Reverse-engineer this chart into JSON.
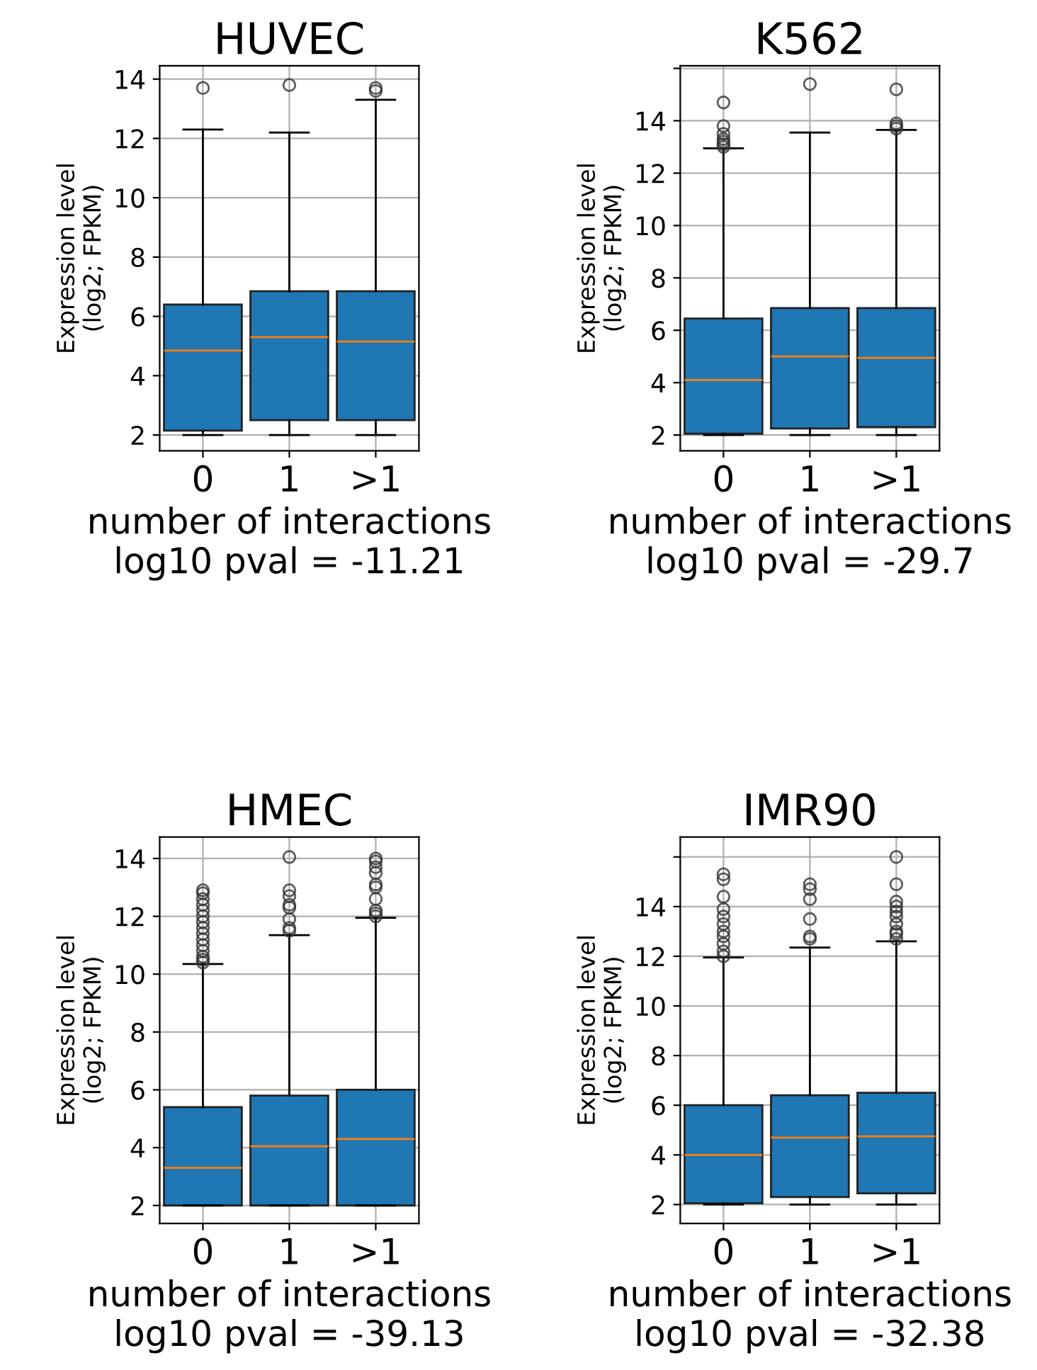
{
  "chart_data": [
    {
      "type": "box",
      "title": "HUVEC",
      "xlabel": "number of interactions\nlog10 pval = -11.21",
      "ylabel": "Expression level\n(log2; FPKM)",
      "categories": [
        "0",
        "1",
        ">1"
      ],
      "ylim": [
        1.47,
        14.45
      ],
      "yticks": [
        2,
        4,
        6,
        8,
        10,
        12,
        14
      ],
      "grid": true,
      "series": [
        {
          "color": "#1f77b4",
          "boxes": [
            {
              "low": 2.0,
              "q1": 2.15,
              "median": 4.85,
              "q3": 6.4,
              "high": 12.3,
              "outliers": [
                13.7
              ]
            },
            {
              "low": 2.0,
              "q1": 2.5,
              "median": 5.3,
              "q3": 6.85,
              "high": 12.2,
              "outliers": [
                13.8
              ]
            },
            {
              "low": 2.0,
              "q1": 2.5,
              "median": 5.15,
              "q3": 6.85,
              "high": 13.3,
              "outliers": [
                13.6,
                13.7
              ]
            }
          ]
        }
      ]
    },
    {
      "type": "box",
      "title": "K562",
      "xlabel": "number of interactions\nlog10 pval = -29.7",
      "ylabel": "Expression level\n(log2; FPKM)",
      "categories": [
        "0",
        "1",
        ">1"
      ],
      "ylim": [
        1.4,
        16.1
      ],
      "yticks": [
        2,
        4,
        6,
        8,
        10,
        12,
        14,
        {
          "value": 16,
          "label": null
        }
      ],
      "grid": true,
      "series": [
        {
          "color": "#1f77b4",
          "boxes": [
            {
              "low": 2.0,
              "q1": 2.05,
              "median": 4.1,
              "q3": 6.45,
              "high": 12.95,
              "outliers": [
                13.0,
                13.1,
                13.2,
                13.3,
                13.5,
                13.8,
                14.7
              ]
            },
            {
              "low": 2.0,
              "q1": 2.25,
              "median": 5.0,
              "q3": 6.85,
              "high": 13.55,
              "outliers": [
                15.4
              ]
            },
            {
              "low": 2.0,
              "q1": 2.3,
              "median": 4.95,
              "q3": 6.85,
              "high": 13.65,
              "outliers": [
                13.7,
                13.8,
                13.9,
                15.2
              ]
            }
          ]
        }
      ]
    },
    {
      "type": "box",
      "title": "HMEC",
      "xlabel": "number of interactions\nlog10 pval = -39.13",
      "ylabel": "Expression level\n(log2; FPKM)",
      "categories": [
        "0",
        "1",
        ">1"
      ],
      "ylim": [
        1.38,
        14.74
      ],
      "yticks": [
        2,
        4,
        6,
        8,
        10,
        12,
        14
      ],
      "grid": true,
      "series": [
        {
          "color": "#1f77b4",
          "boxes": [
            {
              "low": 2.0,
              "q1": 2.0,
              "median": 3.3,
              "q3": 5.4,
              "high": 10.35,
              "outliers": [
                10.4,
                10.5,
                10.6,
                10.8,
                11.0,
                11.2,
                11.4,
                11.6,
                11.8,
                12.0,
                12.2,
                12.4,
                12.6,
                12.8,
                12.9
              ]
            },
            {
              "low": 2.0,
              "q1": 2.0,
              "median": 4.05,
              "q3": 5.8,
              "high": 11.35,
              "outliers": [
                11.5,
                11.6,
                11.9,
                12.3,
                12.4,
                12.7,
                12.9,
                14.05
              ]
            },
            {
              "low": 2.0,
              "q1": 2.0,
              "median": 4.3,
              "q3": 6.0,
              "high": 11.95,
              "outliers": [
                12.0,
                12.1,
                12.2,
                12.6,
                13.0,
                13.1,
                13.5,
                13.7,
                13.9,
                14.0
              ]
            }
          ]
        }
      ]
    },
    {
      "type": "box",
      "title": "IMR90",
      "xlabel": "number of interactions\nlog10 pval = -32.38",
      "ylabel": "Expression level\n(log2; FPKM)",
      "categories": [
        "0",
        "1",
        ">1"
      ],
      "ylim": [
        1.24,
        16.8
      ],
      "yticks": [
        2,
        4,
        6,
        8,
        10,
        12,
        14,
        {
          "value": 16,
          "label": null
        }
      ],
      "grid": true,
      "series": [
        {
          "color": "#1f77b4",
          "boxes": [
            {
              "low": 2.0,
              "q1": 2.05,
              "median": 4.0,
              "q3": 6.0,
              "high": 11.95,
              "outliers": [
                12.0,
                12.2,
                12.5,
                12.8,
                13.0,
                13.3,
                13.6,
                13.9,
                14.4,
                15.1,
                15.3
              ]
            },
            {
              "low": 2.0,
              "q1": 2.3,
              "median": 4.7,
              "q3": 6.4,
              "high": 12.35,
              "outliers": [
                12.7,
                12.8,
                13.5,
                14.3,
                14.7,
                14.9
              ]
            },
            {
              "low": 2.0,
              "q1": 2.45,
              "median": 4.75,
              "q3": 6.5,
              "high": 12.6,
              "outliers": [
                12.7,
                12.9,
                13.0,
                13.3,
                13.6,
                13.8,
                14.0,
                14.2,
                14.9,
                16.0
              ]
            }
          ]
        }
      ]
    }
  ]
}
